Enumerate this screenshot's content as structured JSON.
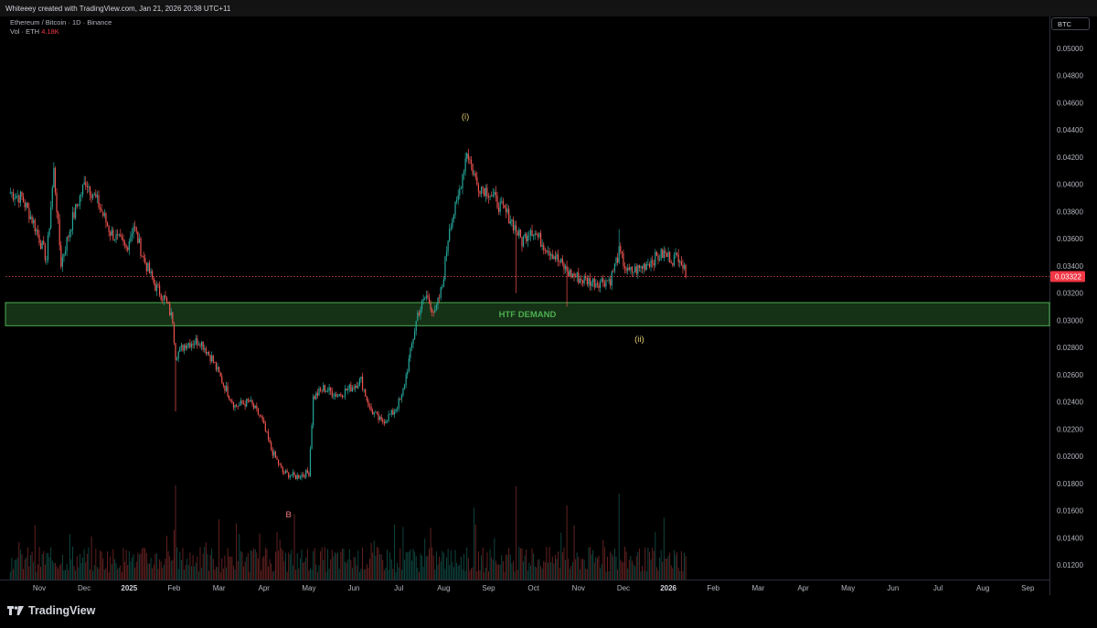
{
  "header": {
    "attribution": "Whiteeey created with TradingView.com, Jan 21, 2026 20:38 UTC+11"
  },
  "legend": {
    "symbol_line": "Ethereum / Bitcoin · 1D · Binance",
    "volume_label": "Vol · ETH",
    "volume_value": "4.18K"
  },
  "scale_button": "BTC",
  "branding": "TradingView",
  "chart_data": {
    "type": "candlestick",
    "symbol": "ETH/BTC",
    "interval": "1D",
    "exchange": "Binance",
    "ylim": [
      0.0114,
      0.0518
    ],
    "y_ticks": [
      "0.05000",
      "0.04800",
      "0.04600",
      "0.04400",
      "0.04200",
      "0.04000",
      "0.03800",
      "0.03600",
      "0.03400",
      "0.03200",
      "0.03000",
      "0.02800",
      "0.02600",
      "0.02400",
      "0.02200",
      "0.02000",
      "0.01800",
      "0.01600",
      "0.01400",
      "0.01200"
    ],
    "x_ticks": [
      "Nov",
      "Dec",
      "2025",
      "Feb",
      "Mar",
      "Apr",
      "May",
      "Jun",
      "Jul",
      "Aug",
      "Sep",
      "Oct",
      "Nov",
      "Dec",
      "2026",
      "Feb",
      "Mar",
      "Apr",
      "May",
      "Jun",
      "Jul",
      "Aug",
      "Sep"
    ],
    "bold_x_ticks": [
      "2025",
      "2026"
    ],
    "last_price": "0.03322",
    "zone": {
      "label": "HTF DEMAND",
      "low": 0.0296,
      "high": 0.0313,
      "color": "#4caf50"
    },
    "annotations": [
      {
        "text": "(i)",
        "date": "2025-08-22",
        "price": 0.0448,
        "color": "#e0c873"
      },
      {
        "text": "(ii)",
        "date": "2025-12-20",
        "price": 0.0284,
        "color": "#e0c873"
      },
      {
        "text": "B",
        "date": "2025-04-22",
        "price": 0.0155,
        "color": "#f77c80"
      }
    ],
    "price_path": [
      [
        "2024-10-12",
        0.0394
      ],
      [
        "2024-10-20",
        0.039
      ],
      [
        "2024-10-28",
        0.0372
      ],
      [
        "2024-11-06",
        0.0345
      ],
      [
        "2024-11-11",
        0.041
      ],
      [
        "2024-11-16",
        0.0342
      ],
      [
        "2024-11-24",
        0.0375
      ],
      [
        "2024-12-03",
        0.0403
      ],
      [
        "2024-12-12",
        0.0385
      ],
      [
        "2024-12-20",
        0.0365
      ],
      [
        "2024-12-31",
        0.0353
      ],
      [
        "2025-01-05",
        0.037
      ],
      [
        "2025-01-12",
        0.0345
      ],
      [
        "2025-01-20",
        0.0325
      ],
      [
        "2025-01-27",
        0.0315
      ],
      [
        "2025-02-01",
        0.03
      ],
      [
        "2025-02-03",
        0.0274
      ],
      [
        "2025-02-10",
        0.0283
      ],
      [
        "2025-02-20",
        0.0285
      ],
      [
        "2025-02-28",
        0.0272
      ],
      [
        "2025-03-08",
        0.0253
      ],
      [
        "2025-03-16",
        0.0237
      ],
      [
        "2025-03-26",
        0.024
      ],
      [
        "2025-04-03",
        0.0228
      ],
      [
        "2025-04-10",
        0.0205
      ],
      [
        "2025-04-18",
        0.0188
      ],
      [
        "2025-04-27",
        0.0185
      ],
      [
        "2025-05-06",
        0.0188
      ],
      [
        "2025-05-09",
        0.0243
      ],
      [
        "2025-05-16",
        0.025
      ],
      [
        "2025-05-26",
        0.0245
      ],
      [
        "2025-06-05",
        0.0251
      ],
      [
        "2025-06-11",
        0.0256
      ],
      [
        "2025-06-17",
        0.0235
      ],
      [
        "2025-06-25",
        0.0225
      ],
      [
        "2025-07-03",
        0.0232
      ],
      [
        "2025-07-09",
        0.0243
      ],
      [
        "2025-07-15",
        0.0276
      ],
      [
        "2025-07-20",
        0.0305
      ],
      [
        "2025-07-26",
        0.0318
      ],
      [
        "2025-08-01",
        0.0305
      ],
      [
        "2025-08-06",
        0.0325
      ],
      [
        "2025-08-11",
        0.037
      ],
      [
        "2025-08-16",
        0.0385
      ],
      [
        "2025-08-23",
        0.0425
      ],
      [
        "2025-08-30",
        0.04
      ],
      [
        "2025-09-07",
        0.0395
      ],
      [
        "2025-09-14",
        0.0385
      ],
      [
        "2025-09-22",
        0.0375
      ],
      [
        "2025-09-30",
        0.0358
      ],
      [
        "2025-10-06",
        0.0368
      ],
      [
        "2025-10-14",
        0.0357
      ],
      [
        "2025-10-22",
        0.0348
      ],
      [
        "2025-11-01",
        0.0335
      ],
      [
        "2025-11-10",
        0.033
      ],
      [
        "2025-11-20",
        0.0328
      ],
      [
        "2025-11-30",
        0.033
      ],
      [
        "2025-12-06",
        0.035
      ],
      [
        "2025-12-12",
        0.0335
      ],
      [
        "2025-12-20",
        0.0338
      ],
      [
        "2025-12-28",
        0.0344
      ],
      [
        "2026-01-06",
        0.0349
      ],
      [
        "2026-01-12",
        0.0345
      ],
      [
        "2026-01-17",
        0.0348
      ],
      [
        "2026-01-21",
        0.0332
      ]
    ],
    "spikes": [
      {
        "date": "2025-02-03",
        "low": 0.0233
      },
      {
        "date": "2025-09-26",
        "low": 0.032
      },
      {
        "date": "2025-10-31",
        "low": 0.031
      },
      {
        "date": "2025-12-06",
        "high": 0.0367
      }
    ],
    "bullish_color": "#26a69a",
    "bearish_color": "#ef5350"
  }
}
